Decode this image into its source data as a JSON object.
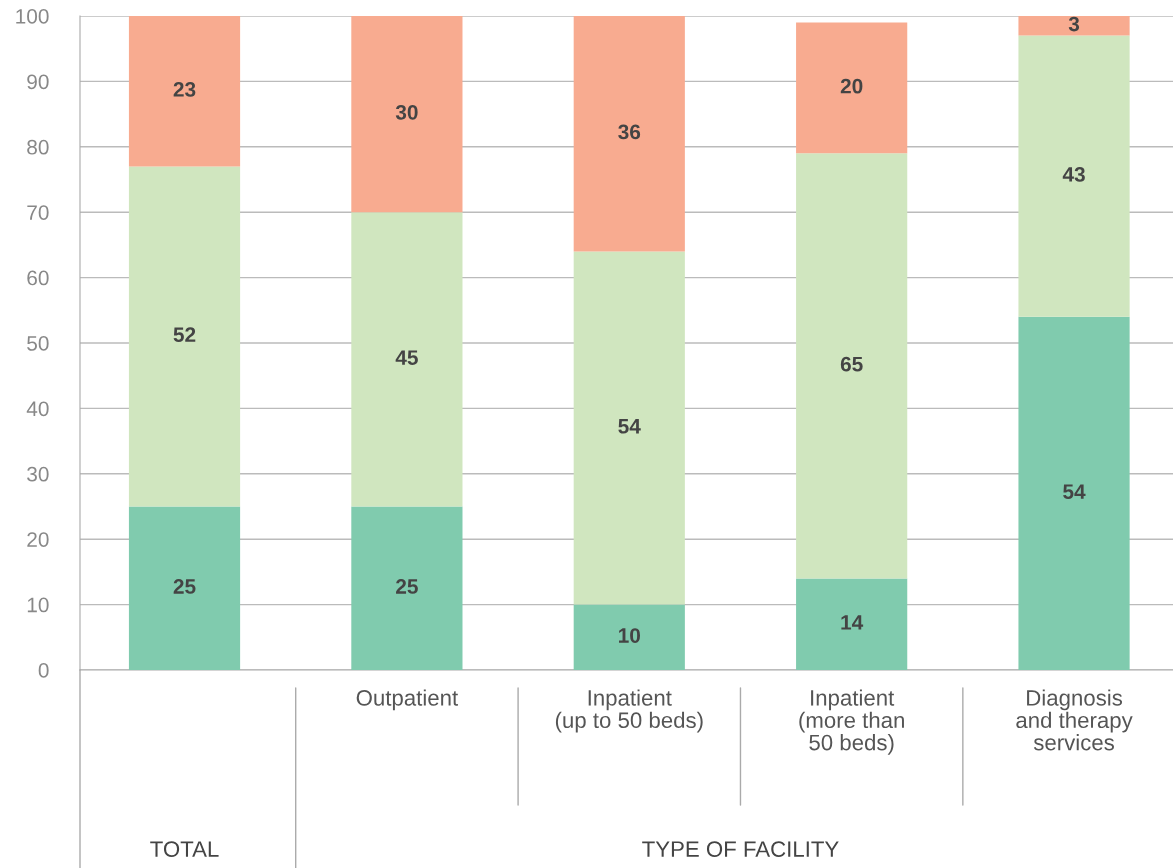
{
  "chart_data": {
    "type": "bar",
    "stacked": true,
    "categories": [
      null,
      "Outpatient",
      "Inpatient\n(up to 50 beds)",
      "Inpatient\n(more than\n50 beds)",
      "Diagnosis\nand therapy\nservices"
    ],
    "series": [
      {
        "color": "#80cbae",
        "values": [
          25,
          25,
          10,
          14,
          54
        ]
      },
      {
        "color": "#d0e6bf",
        "values": [
          52,
          45,
          54,
          65,
          43
        ]
      },
      {
        "color": "#f8ab90",
        "values": [
          23,
          30,
          36,
          20,
          3
        ]
      }
    ],
    "annotations": [
      "TOTAL",
      "TYPE OF FACILITY"
    ],
    "ylim": [
      0,
      100
    ],
    "yticks": [
      0,
      10,
      20,
      30,
      40,
      50,
      60,
      70,
      80,
      90,
      100
    ],
    "grid": "y",
    "data_labels": true,
    "legend": false
  }
}
